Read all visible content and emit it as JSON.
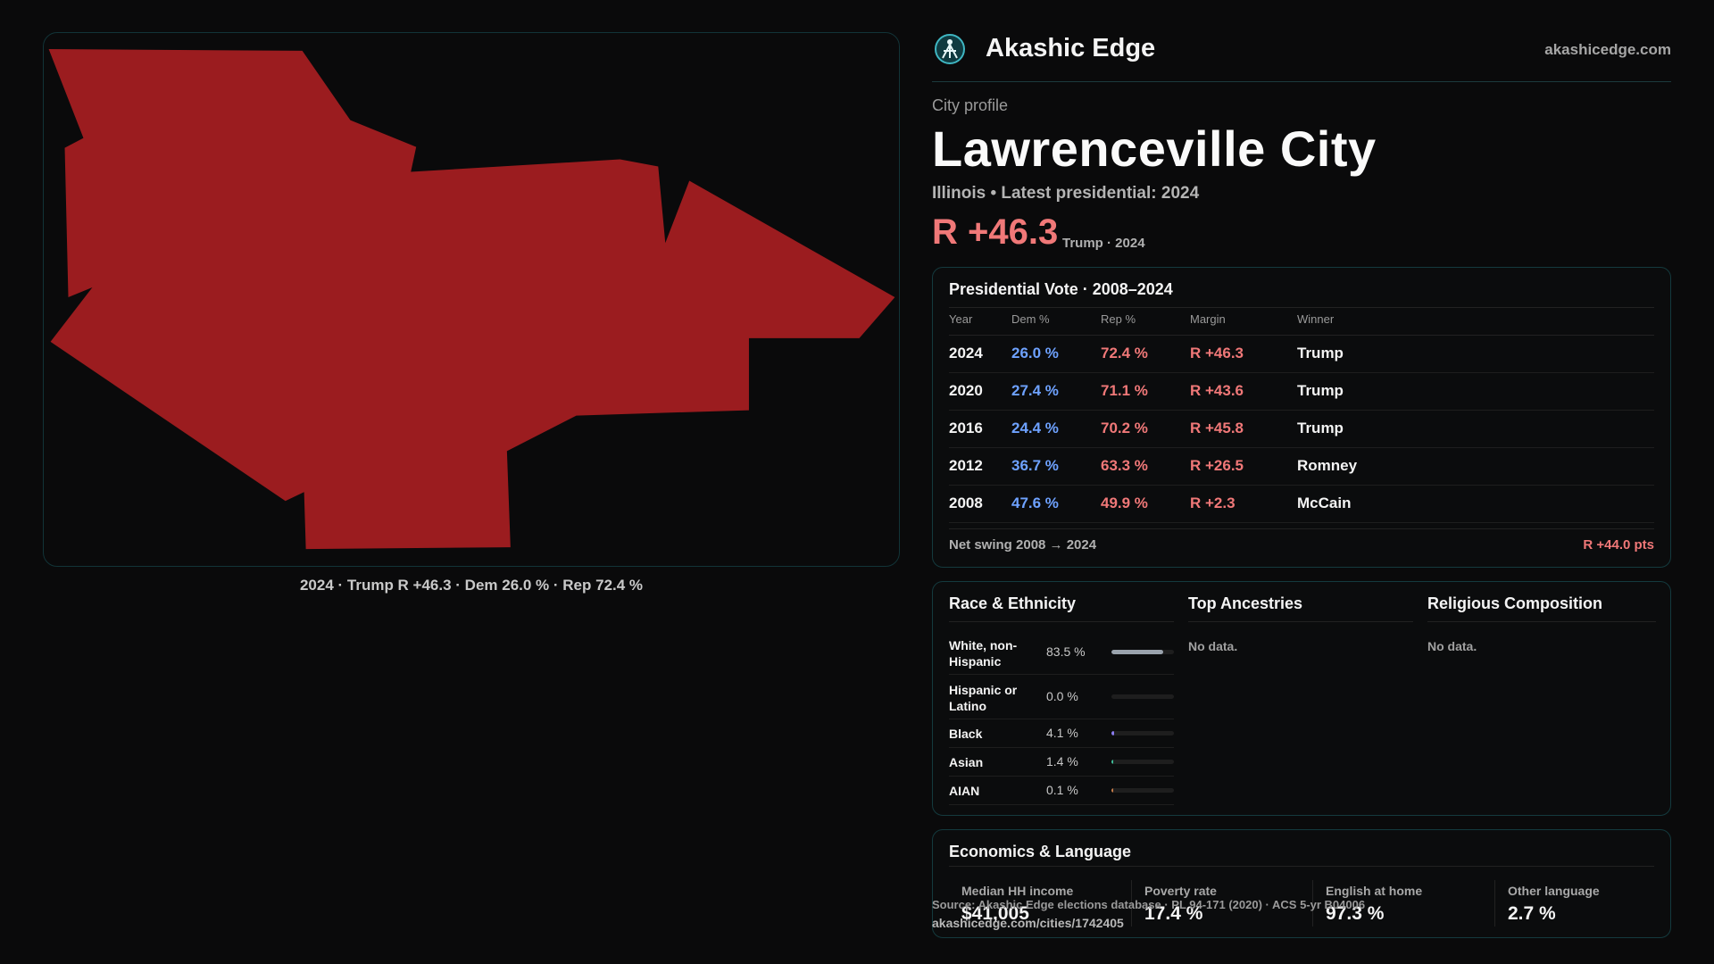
{
  "brand": {
    "name": "Akashic Edge",
    "url": "akashicedge.com"
  },
  "profile": {
    "eyebrow": "City profile",
    "city": "Lawrenceville City",
    "subline": "Illinois • Latest presidential: 2024",
    "margin": "R +46.3",
    "margin_meta": "Trump · 2024",
    "accent_rep": "#f07878",
    "accent_dem": "#6ea2ff",
    "map_fill": "#9b1c1f"
  },
  "map": {
    "caption": "2024 · Trump R +46.3 · Dem 26.0 % · Rep 72.4 %"
  },
  "vote": {
    "title": "Presidential Vote · 2008–2024",
    "headers": {
      "year": "Year",
      "dem": "Dem %",
      "rep": "Rep %",
      "margin": "Margin",
      "winner": "Winner"
    },
    "rows": [
      {
        "year": "2024",
        "dem": "26.0 %",
        "rep": "72.4 %",
        "margin": "R +46.3",
        "winner": "Trump"
      },
      {
        "year": "2020",
        "dem": "27.4 %",
        "rep": "71.1 %",
        "margin": "R +43.6",
        "winner": "Trump"
      },
      {
        "year": "2016",
        "dem": "24.4 %",
        "rep": "70.2 %",
        "margin": "R +45.8",
        "winner": "Trump"
      },
      {
        "year": "2012",
        "dem": "36.7 %",
        "rep": "63.3 %",
        "margin": "R +26.5",
        "winner": "Romney"
      },
      {
        "year": "2008",
        "dem": "47.6 %",
        "rep": "49.9 %",
        "margin": "R +2.3",
        "winner": "McCain"
      }
    ],
    "swing_label": "Net swing 2008 → 2024",
    "swing_value": "R +44.0 pts"
  },
  "demographics": {
    "race_title": "Race & Ethnicity",
    "race": [
      {
        "label": "White, non-Hispanic",
        "pct": "83.5 %",
        "share": 0.835,
        "color": "#9aa3ad"
      },
      {
        "label": "Hispanic or Latino",
        "pct": "0.0 %",
        "share": 0.0,
        "color": "#d9a441"
      },
      {
        "label": "Black",
        "pct": "4.1 %",
        "share": 0.041,
        "color": "#8a7cf0"
      },
      {
        "label": "Asian",
        "pct": "1.4 %",
        "share": 0.014,
        "color": "#3fbf9a"
      },
      {
        "label": "AIAN",
        "pct": "0.1 %",
        "share": 0.001,
        "color": "#c77d4a"
      }
    ],
    "ancestry_title": "Top Ancestries",
    "ancestry_empty": "No data.",
    "religion_title": "Religious Composition",
    "religion_empty": "No data."
  },
  "economics": {
    "title": "Economics & Language",
    "items": [
      {
        "label": "Median HH income",
        "value": "$41,005"
      },
      {
        "label": "Poverty rate",
        "value": "17.4 %"
      },
      {
        "label": "English at home",
        "value": "97.3 %"
      },
      {
        "label": "Other language",
        "value": "2.7 %"
      }
    ]
  },
  "footer": {
    "source": "Source: Akashic Edge elections database · PL 94-171 (2020) · ACS 5-yr B04006",
    "url": "akashicedge.com/cities/1742405"
  }
}
